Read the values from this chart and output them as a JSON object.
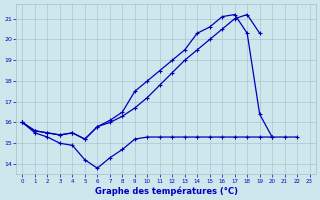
{
  "xlabel": "Graphe des températures (°C)",
  "x": [
    0,
    1,
    2,
    3,
    4,
    5,
    6,
    7,
    8,
    9,
    10,
    11,
    12,
    13,
    14,
    15,
    16,
    17,
    18,
    19,
    20,
    21,
    22,
    23
  ],
  "line1_y": [
    16.0,
    15.6,
    15.5,
    15.4,
    15.5,
    15.2,
    15.8,
    16.0,
    16.3,
    16.7,
    17.2,
    17.8,
    18.4,
    19.0,
    19.5,
    20.0,
    20.5,
    21.0,
    21.2,
    20.3,
    null,
    null,
    null,
    null
  ],
  "line2_y": [
    16.0,
    15.6,
    15.5,
    15.4,
    15.5,
    15.2,
    15.8,
    16.1,
    16.5,
    17.5,
    18.0,
    18.5,
    19.0,
    19.5,
    20.3,
    20.6,
    21.1,
    21.2,
    20.3,
    16.4,
    15.3,
    null,
    null,
    null
  ],
  "line3_y": [
    16.0,
    15.5,
    15.3,
    15.0,
    14.9,
    14.2,
    13.8,
    14.3,
    14.7,
    15.2,
    15.3,
    15.3,
    15.3,
    15.3,
    15.3,
    15.3,
    15.3,
    15.3,
    15.3,
    15.3,
    15.3,
    15.3,
    15.3,
    null
  ],
  "line_color": "#0000bb",
  "bg_color": "#cce8ec",
  "grid_color": "#aabbcc",
  "ylim": [
    13.5,
    21.7
  ],
  "yticks": [
    14,
    15,
    16,
    17,
    18,
    19,
    20,
    21
  ],
  "xlim": [
    -0.5,
    23.5
  ],
  "xticks": [
    0,
    1,
    2,
    3,
    4,
    5,
    6,
    7,
    8,
    9,
    10,
    11,
    12,
    13,
    14,
    15,
    16,
    17,
    18,
    19,
    20,
    21,
    22,
    23
  ]
}
